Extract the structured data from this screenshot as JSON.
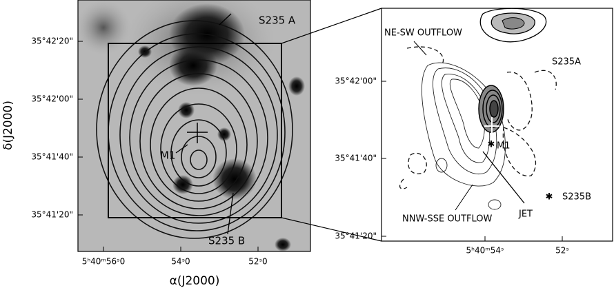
{
  "left_panel": {
    "y_label": "δ(J2000)",
    "x_label": "α(J2000)",
    "y_ticks": [
      "35°42'20\"",
      "35°42'00\"",
      "35°41'40\"",
      "35°41'20\""
    ],
    "x_ticks": [
      "5ʰ40ᵐ56ˢ0",
      "54ˢ0",
      "52ˢ0"
    ],
    "labels": [
      "S235 A",
      "M1",
      "S235 B"
    ]
  },
  "right_panel": {
    "y_ticks": [
      "35°42'00\"",
      "35°41'40\"",
      "35°41'20\""
    ],
    "x_ticks": [
      "5ʰ40ᵐ54ˢ",
      "52ˢ"
    ],
    "labels": [
      "NE-SW OUTFLOW",
      "S235A",
      "M1",
      "S235B",
      "JET",
      "NNW-SSE OUTFLOW"
    ]
  }
}
